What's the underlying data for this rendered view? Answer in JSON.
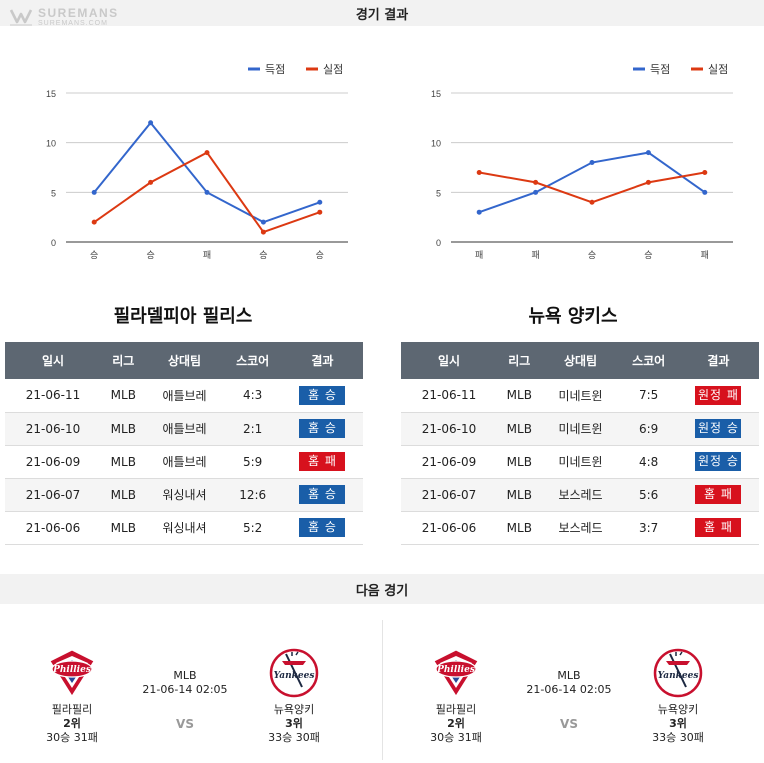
{
  "logo": {
    "line1": "SUREMANS",
    "line2": "SUREMANS.COM"
  },
  "sections": {
    "results_title": "경기 결과",
    "next_title": "다음 경기"
  },
  "legend": {
    "scored": "득점",
    "allowed": "실점"
  },
  "colors": {
    "scored": "#3366cc",
    "allowed": "#dc3912",
    "win": "#1a5ea8",
    "loss": "#d7111d",
    "header": "#5d6772"
  },
  "chart_data": [
    {
      "type": "line",
      "categories": [
        "승",
        "승",
        "패",
        "승",
        "승"
      ],
      "series": [
        {
          "name": "득점",
          "values": [
            5,
            12,
            5,
            2,
            4
          ]
        },
        {
          "name": "실점",
          "values": [
            2,
            6,
            9,
            1,
            3
          ]
        }
      ],
      "ylim": [
        0,
        15
      ],
      "yticks": [
        0,
        5,
        10,
        15
      ],
      "grid": true,
      "legend": "top-right"
    },
    {
      "type": "line",
      "categories": [
        "패",
        "패",
        "승",
        "승",
        "패"
      ],
      "series": [
        {
          "name": "득점",
          "values": [
            3,
            5,
            8,
            9,
            5
          ]
        },
        {
          "name": "실점",
          "values": [
            7,
            6,
            4,
            6,
            7
          ]
        }
      ],
      "ylim": [
        0,
        15
      ],
      "yticks": [
        0,
        5,
        10,
        15
      ],
      "grid": true,
      "legend": "top-right"
    }
  ],
  "table_headers": [
    "일시",
    "리그",
    "상대팀",
    "스코어",
    "결과"
  ],
  "teams": [
    {
      "title": "필라델피아 필리스",
      "rows": [
        {
          "date": "21-06-11",
          "league": "MLB",
          "opponent": "애틀브레",
          "score": "4:3",
          "result": "홈 승",
          "win": true
        },
        {
          "date": "21-06-10",
          "league": "MLB",
          "opponent": "애틀브레",
          "score": "2:1",
          "result": "홈 승",
          "win": true
        },
        {
          "date": "21-06-09",
          "league": "MLB",
          "opponent": "애틀브레",
          "score": "5:9",
          "result": "홈 패",
          "win": false
        },
        {
          "date": "21-06-07",
          "league": "MLB",
          "opponent": "워싱내셔",
          "score": "12:6",
          "result": "홈 승",
          "win": true
        },
        {
          "date": "21-06-06",
          "league": "MLB",
          "opponent": "워싱내셔",
          "score": "5:2",
          "result": "홈 승",
          "win": true
        }
      ]
    },
    {
      "title": "뉴욕 양키스",
      "rows": [
        {
          "date": "21-06-11",
          "league": "MLB",
          "opponent": "미네트윈",
          "score": "7:5",
          "result": "원정 패",
          "win": false
        },
        {
          "date": "21-06-10",
          "league": "MLB",
          "opponent": "미네트윈",
          "score": "6:9",
          "result": "원정 승",
          "win": true
        },
        {
          "date": "21-06-09",
          "league": "MLB",
          "opponent": "미네트윈",
          "score": "4:8",
          "result": "원정 승",
          "win": true
        },
        {
          "date": "21-06-07",
          "league": "MLB",
          "opponent": "보스레드",
          "score": "5:6",
          "result": "홈 패",
          "win": false
        },
        {
          "date": "21-06-06",
          "league": "MLB",
          "opponent": "보스레드",
          "score": "3:7",
          "result": "홈 패",
          "win": false
        }
      ]
    }
  ],
  "next_game": [
    {
      "league": "MLB",
      "datetime": "21-06-14 02:05",
      "vs": "VS",
      "home": {
        "name": "필라필리",
        "rank": "2위",
        "record": "30승 31패",
        "emblem": "phillies-logo"
      },
      "away": {
        "name": "뉴욕양키",
        "rank": "3위",
        "record": "33승 30패",
        "emblem": "yankees-logo"
      }
    },
    {
      "league": "MLB",
      "datetime": "21-06-14 02:05",
      "vs": "VS",
      "home": {
        "name": "필라필리",
        "rank": "2위",
        "record": "30승 31패",
        "emblem": "phillies-logo"
      },
      "away": {
        "name": "뉴욕양키",
        "rank": "3위",
        "record": "33승 30패",
        "emblem": "yankees-logo"
      }
    }
  ]
}
